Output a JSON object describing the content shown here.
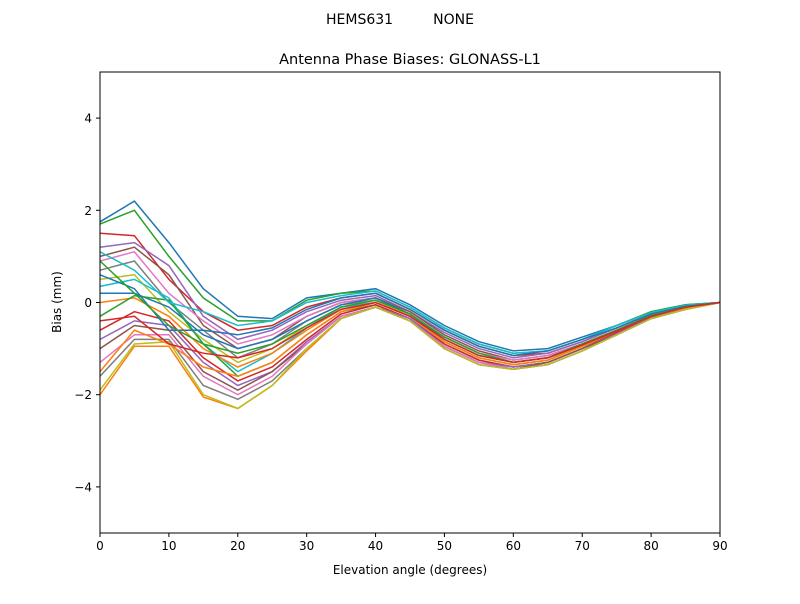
{
  "chart_data": {
    "type": "line",
    "suptitle": "HEMS631         NONE",
    "title": "Antenna Phase Biases: GLONASS-L1",
    "xlabel": "Elevation angle (degrees)",
    "ylabel": "Bias (mm)",
    "xlim": [
      0,
      90
    ],
    "ylim": [
      -5,
      5
    ],
    "xticks": [
      0,
      10,
      20,
      30,
      40,
      50,
      60,
      70,
      80,
      90
    ],
    "yticks": [
      -4,
      -2,
      0,
      2,
      4
    ],
    "ytick_labels": [
      "−4",
      "−2",
      "0",
      "2",
      "4"
    ],
    "grid": false,
    "colors": [
      "#1f77b4",
      "#ff7f0e",
      "#2ca02c",
      "#d62728",
      "#9467bd",
      "#8c564b",
      "#e377c2",
      "#7f7f7f",
      "#bcbd22",
      "#17becf"
    ],
    "x": [
      0,
      5,
      10,
      15,
      20,
      25,
      30,
      35,
      40,
      45,
      50,
      55,
      60,
      65,
      70,
      75,
      80,
      85,
      90
    ],
    "series": [
      {
        "values": [
          1.75,
          2.2,
          1.3,
          0.3,
          -0.3,
          -0.35,
          0.1,
          0.2,
          0.3,
          -0.05,
          -0.5,
          -0.85,
          -1.05,
          -1.0,
          -0.75,
          -0.5,
          -0.2,
          -0.05,
          0
        ]
      },
      {
        "values": [
          -2.0,
          -0.95,
          -0.95,
          -2.05,
          -2.3,
          -1.8,
          -1.05,
          -0.35,
          -0.1,
          -0.4,
          -1.0,
          -1.35,
          -1.45,
          -1.35,
          -1.05,
          -0.7,
          -0.35,
          -0.15,
          0
        ]
      },
      {
        "values": [
          1.7,
          2.0,
          1.0,
          0.1,
          -0.4,
          -0.4,
          0.05,
          0.2,
          0.25,
          -0.1,
          -0.55,
          -0.9,
          -1.1,
          -1.05,
          -0.8,
          -0.5,
          -0.2,
          -0.05,
          0
        ]
      },
      {
        "values": [
          1.5,
          1.45,
          0.5,
          -0.2,
          -0.6,
          -0.5,
          -0.1,
          0.1,
          0.2,
          -0.15,
          -0.6,
          -0.95,
          -1.15,
          -1.1,
          -0.85,
          -0.55,
          -0.25,
          -0.08,
          0
        ]
      },
      {
        "values": [
          1.2,
          1.3,
          0.8,
          -0.3,
          -0.8,
          -0.6,
          -0.2,
          0.05,
          0.15,
          -0.2,
          -0.65,
          -1.0,
          -1.2,
          -1.1,
          -0.85,
          -0.55,
          -0.25,
          -0.08,
          0
        ]
      },
      {
        "values": [
          1.0,
          1.2,
          0.6,
          -0.5,
          -1.0,
          -0.8,
          -0.3,
          0.0,
          0.1,
          -0.2,
          -0.7,
          -1.05,
          -1.25,
          -1.15,
          -0.9,
          -0.6,
          -0.28,
          -0.1,
          0
        ]
      },
      {
        "values": [
          0.9,
          1.1,
          0.2,
          -0.4,
          -0.9,
          -0.7,
          -0.3,
          0.0,
          0.1,
          -0.25,
          -0.75,
          -1.1,
          -1.25,
          -1.15,
          -0.9,
          -0.6,
          -0.28,
          -0.1,
          0
        ]
      },
      {
        "values": [
          0.7,
          0.9,
          0.0,
          -0.6,
          -1.2,
          -0.9,
          -0.4,
          -0.05,
          0.05,
          -0.25,
          -0.75,
          -1.1,
          -1.3,
          -1.2,
          -0.9,
          -0.6,
          -0.3,
          -0.1,
          0
        ]
      },
      {
        "values": [
          0.5,
          0.6,
          -0.2,
          -0.8,
          -1.3,
          -1.0,
          -0.5,
          -0.1,
          0.05,
          -0.3,
          -0.8,
          -1.15,
          -1.3,
          -1.2,
          -0.95,
          -0.6,
          -0.3,
          -0.1,
          0
        ]
      },
      {
        "values": [
          0.35,
          0.5,
          0.1,
          -0.9,
          -1.5,
          -1.1,
          -0.55,
          -0.1,
          0.0,
          -0.3,
          -0.85,
          -1.2,
          -1.35,
          -1.25,
          -0.95,
          -0.65,
          -0.3,
          -0.1,
          0
        ]
      },
      {
        "values": [
          0.2,
          0.2,
          -0.1,
          -0.7,
          -1.0,
          -0.8,
          -0.4,
          -0.05,
          0.1,
          -0.25,
          -0.8,
          -1.15,
          -1.3,
          -1.2,
          -0.9,
          -0.6,
          -0.3,
          -0.1,
          0
        ]
      },
      {
        "values": [
          0.0,
          0.1,
          -0.3,
          -1.0,
          -1.4,
          -1.1,
          -0.6,
          -0.15,
          0.0,
          -0.3,
          -0.85,
          -1.2,
          -1.35,
          -1.25,
          -0.95,
          -0.65,
          -0.3,
          -0.12,
          0
        ]
      },
      {
        "values": [
          -0.3,
          0.15,
          0.05,
          -0.9,
          -1.6,
          -1.3,
          -0.7,
          -0.2,
          -0.05,
          -0.35,
          -0.9,
          -1.25,
          -1.4,
          -1.3,
          -1.0,
          -0.65,
          -0.32,
          -0.12,
          0
        ]
      },
      {
        "values": [
          -0.6,
          -0.2,
          -0.4,
          -1.2,
          -1.7,
          -1.4,
          -0.8,
          -0.25,
          -0.05,
          -0.35,
          -0.9,
          -1.25,
          -1.4,
          -1.3,
          -1.0,
          -0.65,
          -0.32,
          -0.12,
          0
        ]
      },
      {
        "values": [
          -0.8,
          -0.4,
          -0.5,
          -1.3,
          -1.8,
          -1.5,
          -0.85,
          -0.3,
          -0.1,
          -0.35,
          -0.95,
          -1.3,
          -1.4,
          -1.3,
          -1.0,
          -0.68,
          -0.33,
          -0.13,
          0
        ]
      },
      {
        "values": [
          -1.0,
          -0.5,
          -0.6,
          -1.5,
          -1.9,
          -1.5,
          -0.9,
          -0.3,
          -0.1,
          -0.4,
          -0.95,
          -1.3,
          -1.45,
          -1.3,
          -1.0,
          -0.7,
          -0.34,
          -0.14,
          0
        ]
      },
      {
        "values": [
          -1.3,
          -0.7,
          -0.7,
          -1.6,
          -2.0,
          -1.6,
          -0.9,
          -0.3,
          -0.1,
          -0.4,
          -0.95,
          -1.3,
          -1.45,
          -1.35,
          -1.05,
          -0.7,
          -0.35,
          -0.14,
          0
        ]
      },
      {
        "values": [
          -1.6,
          -0.8,
          -0.8,
          -1.8,
          -2.1,
          -1.7,
          -1.0,
          -0.35,
          -0.1,
          -0.4,
          -1.0,
          -1.35,
          -1.45,
          -1.35,
          -1.05,
          -0.7,
          -0.35,
          -0.15,
          0
        ]
      },
      {
        "values": [
          -1.9,
          -0.9,
          -0.85,
          -2.0,
          -2.3,
          -1.8,
          -1.0,
          -0.35,
          -0.1,
          -0.4,
          -1.0,
          -1.35,
          -1.45,
          -1.35,
          -1.05,
          -0.7,
          -0.35,
          -0.15,
          0
        ]
      },
      {
        "values": [
          1.1,
          0.7,
          0.0,
          -0.2,
          -0.5,
          -0.4,
          0.0,
          0.15,
          0.25,
          -0.1,
          -0.55,
          -0.9,
          -1.1,
          -1.05,
          -0.8,
          -0.5,
          -0.22,
          -0.06,
          0
        ]
      },
      {
        "values": [
          0.6,
          0.3,
          -0.6,
          -0.6,
          -0.7,
          -0.55,
          -0.15,
          0.1,
          0.2,
          -0.15,
          -0.6,
          -0.95,
          -1.15,
          -1.05,
          -0.8,
          -0.55,
          -0.25,
          -0.08,
          0
        ]
      },
      {
        "values": [
          -1.5,
          -0.6,
          -0.9,
          -1.4,
          -1.6,
          -1.3,
          -0.7,
          -0.2,
          0.0,
          -0.3,
          -0.85,
          -1.2,
          -1.35,
          -1.25,
          -0.95,
          -0.62,
          -0.3,
          -0.11,
          0
        ]
      },
      {
        "values": [
          0.9,
          0.2,
          -0.5,
          -0.9,
          -1.1,
          -0.9,
          -0.5,
          -0.1,
          0.05,
          -0.25,
          -0.75,
          -1.1,
          -1.3,
          -1.2,
          -0.9,
          -0.6,
          -0.28,
          -0.1,
          0
        ]
      },
      {
        "values": [
          -0.4,
          -0.3,
          -0.9,
          -1.1,
          -1.2,
          -1.0,
          -0.55,
          -0.15,
          0.0,
          -0.3,
          -0.8,
          -1.15,
          -1.3,
          -1.2,
          -0.92,
          -0.62,
          -0.3,
          -0.1,
          0
        ]
      }
    ]
  }
}
